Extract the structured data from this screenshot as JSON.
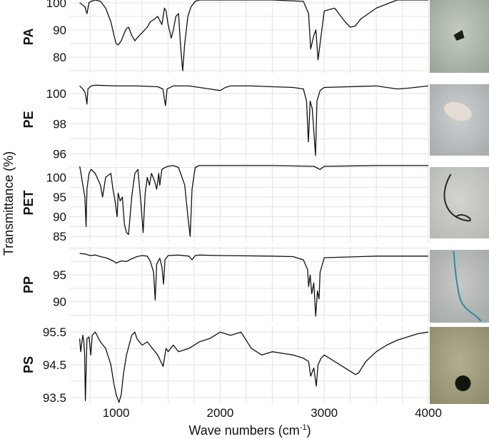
{
  "figure": {
    "ylabel": "Transmittance (%)",
    "xlabel_base": "Wave numbers (cm",
    "xlabel_sup": "-1",
    "xlabel_end": ")"
  },
  "chart_data": [
    {
      "type": "line",
      "name": "PA",
      "xlabel": "Wave numbers (cm-1)",
      "ylabel": "Transmittance (%)",
      "xlim": [
        550,
        4000
      ],
      "ylim": [
        74,
        101
      ],
      "yticks": [
        80,
        90,
        100
      ],
      "xticks": [
        1000,
        2000,
        3000,
        4000
      ],
      "grid": true,
      "x": [
        650,
        700,
        720,
        740,
        760,
        800,
        850,
        900,
        950,
        980,
        1000,
        1020,
        1050,
        1080,
        1100,
        1120,
        1150,
        1180,
        1200,
        1250,
        1300,
        1330,
        1370,
        1400,
        1440,
        1465,
        1480,
        1500,
        1530,
        1550,
        1575,
        1600,
        1620,
        1640,
        1660,
        1690,
        1720,
        1750,
        1760,
        1800,
        2000,
        2500,
        2800,
        2850,
        2870,
        2900,
        2920,
        2940,
        2960,
        3000,
        3100,
        3200,
        3250,
        3300,
        3350,
        3500,
        3700,
        4000
      ],
      "values": [
        100,
        98.5,
        96,
        100,
        100.5,
        101,
        100.5,
        98,
        93,
        88,
        85,
        84.5,
        86,
        89,
        90.5,
        91,
        88,
        86,
        87,
        89,
        91,
        93,
        94,
        95,
        92,
        98,
        97,
        92,
        87,
        90,
        95,
        96,
        84,
        75,
        85,
        95,
        98.5,
        100,
        100.5,
        101,
        101,
        101,
        100.5,
        96,
        83,
        88,
        90,
        79,
        85,
        97,
        98,
        93,
        91,
        91.5,
        94,
        98,
        101,
        101
      ]
    },
    {
      "type": "line",
      "name": "PE",
      "xlabel": "Wave numbers (cm-1)",
      "ylabel": "Transmittance (%)",
      "xlim": [
        550,
        4000
      ],
      "ylim": [
        95.7,
        100.85
      ],
      "yticks": [
        96,
        98,
        100
      ],
      "xticks": [
        1000,
        2000,
        3000,
        4000
      ],
      "grid": true,
      "x": [
        650,
        680,
        700,
        710,
        720,
        730,
        760,
        800,
        1000,
        1200,
        1400,
        1450,
        1465,
        1475,
        1490,
        1550,
        1700,
        1900,
        2000,
        2050,
        2100,
        2300,
        2500,
        2700,
        2800,
        2830,
        2848,
        2865,
        2885,
        2905,
        2916,
        2930,
        2960,
        3000,
        3500,
        3700,
        3800,
        4000
      ],
      "values": [
        100.5,
        100.3,
        100.1,
        99.8,
        99.3,
        100.3,
        100.5,
        100.55,
        100.5,
        100.5,
        100.45,
        100.3,
        99.6,
        99.2,
        100.3,
        100.5,
        100.5,
        100.3,
        100.2,
        100.4,
        100.5,
        100.5,
        100.45,
        100.4,
        100.3,
        99.5,
        96.8,
        99.5,
        99.0,
        97.0,
        95.9,
        99.5,
        100.2,
        100.4,
        100.5,
        100.3,
        100.35,
        100.5
      ]
    },
    {
      "type": "line",
      "name": "PET",
      "xlabel": "Wave numbers (cm-1)",
      "ylabel": "Transmittance (%)",
      "xlim": [
        550,
        4000
      ],
      "ylim": [
        83.4,
        103.7
      ],
      "yticks": [
        85,
        90,
        95,
        100
      ],
      "xticks": [
        1000,
        2000,
        3000,
        4000
      ],
      "grid": true,
      "x": [
        650,
        660,
        680,
        700,
        712,
        720,
        740,
        760,
        800,
        850,
        870,
        900,
        950,
        970,
        990,
        1010,
        1020,
        1040,
        1060,
        1080,
        1100,
        1120,
        1150,
        1180,
        1210,
        1240,
        1260,
        1280,
        1300,
        1320,
        1340,
        1370,
        1390,
        1410,
        1420,
        1440,
        1470,
        1500,
        1550,
        1600,
        1660,
        1690,
        1712,
        1730,
        1760,
        1800,
        2000,
        2500,
        2900,
        2960,
        3000,
        3500,
        4000
      ],
      "values": [
        102.8,
        101.5,
        98,
        95,
        87.5,
        97,
        101,
        102,
        101,
        98,
        95,
        100,
        101,
        97,
        94,
        90,
        96,
        94,
        95,
        88,
        86,
        85.5,
        95,
        101,
        102,
        93,
        86,
        96,
        100,
        98,
        101,
        99,
        97,
        101,
        98,
        102,
        102.5,
        102.8,
        103,
        102.5,
        98,
        90,
        85,
        97,
        102.5,
        103,
        103,
        103,
        102.8,
        102,
        102.8,
        103,
        103
      ]
    },
    {
      "type": "line",
      "name": "PP",
      "xlabel": "Wave numbers (cm-1)",
      "ylabel": "Transmittance (%)",
      "xlim": [
        550,
        4000
      ],
      "ylim": [
        86.1,
        100.2
      ],
      "yticks": [
        90,
        95
      ],
      "xticks": [
        1000,
        2000,
        3000,
        4000
      ],
      "grid": true,
      "x": [
        650,
        700,
        750,
        800,
        850,
        900,
        950,
        980,
        1000,
        1050,
        1100,
        1150,
        1200,
        1250,
        1300,
        1330,
        1360,
        1376,
        1390,
        1420,
        1440,
        1456,
        1470,
        1500,
        1600,
        1700,
        1730,
        1760,
        1800,
        2000,
        2500,
        2700,
        2800,
        2840,
        2850,
        2865,
        2880,
        2900,
        2918,
        2935,
        2950,
        2960,
        3000,
        3500,
        4000
      ],
      "values": [
        99,
        98.9,
        98.6,
        98.7,
        98.4,
        98.2,
        97.8,
        97.5,
        97.2,
        97.6,
        97.5,
        98.0,
        98.4,
        98.6,
        98.5,
        97.5,
        95.5,
        90.3,
        97.0,
        98.1,
        96.5,
        93.3,
        97.8,
        98.6,
        98.7,
        98.5,
        97.8,
        98.6,
        98.7,
        98.6,
        98.5,
        98.4,
        97.8,
        96.0,
        92.8,
        95.0,
        91.5,
        93.5,
        87.3,
        92.0,
        90.5,
        95.5,
        98.2,
        98.5,
        98.5
      ]
    },
    {
      "type": "line",
      "name": "PS",
      "xlabel": "Wave numbers (cm-1)",
      "ylabel": "Transmittance (%)",
      "xlim": [
        550,
        4000
      ],
      "ylim": [
        93.3,
        95.7
      ],
      "yticks": [
        93.5,
        94.5,
        95.5
      ],
      "xticks": [
        1000,
        2000,
        3000,
        4000
      ],
      "grid": true,
      "x": [
        650,
        660,
        680,
        690,
        698,
        705,
        720,
        740,
        757,
        770,
        800,
        850,
        900,
        950,
        980,
        1000,
        1028,
        1050,
        1070,
        1100,
        1150,
        1180,
        1200,
        1250,
        1300,
        1350,
        1400,
        1452,
        1480,
        1500,
        1550,
        1600,
        1700,
        1800,
        1900,
        2000,
        2100,
        2200,
        2300,
        2400,
        2500,
        2600,
        2700,
        2800,
        2850,
        2870,
        2900,
        2923,
        2940,
        2970,
        3000,
        3100,
        3200,
        3300,
        3330,
        3400,
        3500,
        3600,
        3700,
        3800,
        3900,
        4000
      ],
      "values": [
        95.3,
        94.9,
        95.4,
        95.2,
        94.8,
        93.4,
        95.3,
        95.35,
        94.8,
        95.4,
        95.5,
        95.2,
        95.0,
        94.5,
        93.9,
        93.6,
        93.35,
        93.6,
        94.2,
        94.8,
        95.4,
        95.5,
        95.3,
        95.1,
        95.2,
        95.0,
        94.8,
        94.45,
        95.0,
        94.9,
        95.1,
        94.9,
        95.0,
        95.2,
        95.3,
        95.5,
        95.4,
        95.5,
        95.0,
        94.8,
        94.9,
        94.85,
        94.8,
        94.7,
        94.6,
        94.15,
        94.4,
        93.85,
        94.5,
        94.7,
        94.8,
        94.6,
        94.4,
        94.2,
        94.25,
        94.6,
        94.9,
        95.1,
        95.25,
        95.35,
        95.45,
        95.5
      ]
    }
  ],
  "thumbnails": [
    {
      "sample": "PA",
      "bg": "#9aa698",
      "bg2": "#c4cbc0",
      "particle": "#1a2018"
    },
    {
      "sample": "PE",
      "bg": "#a8acaf",
      "bg2": "#cdd0d1",
      "particle": "#e4dcd2"
    },
    {
      "sample": "PET",
      "bg": "#b6b9b4",
      "bg2": "#d2d4cf",
      "particle": "#2a2a22"
    },
    {
      "sample": "PP",
      "bg": "#a6aaa8",
      "bg2": "#c6c9c6",
      "particle": "#2b8ca0"
    },
    {
      "sample": "PS",
      "bg": "#8f8c6e",
      "bg2": "#b2ae90",
      "particle": "#151510"
    }
  ]
}
